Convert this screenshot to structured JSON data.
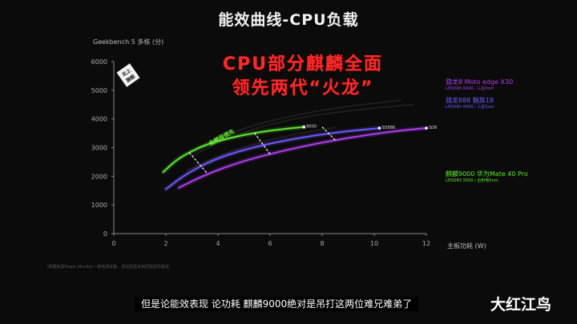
{
  "page": {
    "title": "能效曲线-CPU负载",
    "headline_lines": [
      "CPU部分麒麟全面",
      "领先两代“火龙”"
    ],
    "badge_lines": [
      "北上",
      "旗舰"
    ],
    "subtitle": "但是论能效表现 论功耗 麒麟9000绝对是吊打这两位难兄难弟了",
    "watermark": "大红江鸟",
    "footnote": "*数据来源Power Monitor一致电源采集，测试机型采用同款固件版本"
  },
  "chart_data": {
    "type": "line",
    "ylabel": "Geekbench 5 多核 (分)",
    "xlabel": "主板功耗 (W)",
    "xlim": [
      0,
      12
    ],
    "ylim": [
      0,
      6000
    ],
    "x_ticks": [
      "0",
      "2",
      "4",
      "6",
      "8",
      "10",
      "12"
    ],
    "y_ticks": [
      "0",
      "1000",
      "2000",
      "3000",
      "4000",
      "5000",
      "6000"
    ],
    "grid": false,
    "legend_position": "right",
    "annotation": "全频段领先",
    "series": [
      {
        "name": "麒麟9000",
        "end_label": "9000",
        "color": "#5bea2c",
        "points": [
          [
            1.9,
            2150
          ],
          [
            2.5,
            2650
          ],
          [
            3.5,
            3100
          ],
          [
            4.5,
            3350
          ],
          [
            5.5,
            3530
          ],
          [
            6.5,
            3650
          ],
          [
            7.3,
            3720
          ]
        ]
      },
      {
        "name": "骁龙888",
        "end_label": "SD888",
        "color": "#6e58ff",
        "points": [
          [
            2.0,
            1550
          ],
          [
            2.8,
            2100
          ],
          [
            4.0,
            2650
          ],
          [
            5.5,
            3050
          ],
          [
            7.0,
            3320
          ],
          [
            8.5,
            3530
          ],
          [
            10.2,
            3680
          ]
        ]
      },
      {
        "name": "骁龙8",
        "end_label": "SD8",
        "color": "#b13df2",
        "points": [
          [
            2.5,
            1600
          ],
          [
            3.5,
            2050
          ],
          [
            5.0,
            2550
          ],
          [
            7.0,
            3000
          ],
          [
            9.0,
            3350
          ],
          [
            11.0,
            3600
          ],
          [
            12.0,
            3680
          ]
        ]
      },
      {
        "name": "",
        "color": "#ffffff",
        "faded": true,
        "points": [
          [
            3.0,
            2700
          ],
          [
            4.5,
            3400
          ],
          [
            6.5,
            3950
          ],
          [
            9.0,
            4300
          ],
          [
            11.5,
            4500
          ]
        ]
      },
      {
        "name": "",
        "color": "#ffffff",
        "faded": true,
        "points": [
          [
            3.2,
            3000
          ],
          [
            5.0,
            3700
          ],
          [
            7.0,
            4150
          ],
          [
            9.0,
            4450
          ],
          [
            11.0,
            4650
          ]
        ]
      },
      {
        "name": "",
        "color": "#ffffff",
        "faded": true,
        "points": [
          [
            2.8,
            2200
          ],
          [
            4.5,
            2900
          ],
          [
            6.5,
            3400
          ],
          [
            8.5,
            3700
          ]
        ]
      }
    ]
  },
  "legend": {
    "items": [
      {
        "title": "",
        "sub": "",
        "color": "#888888",
        "dim": true
      },
      {
        "title": "",
        "sub": "",
        "color": "#888888",
        "dim": true
      },
      {
        "title": "骁龙8 Moto edge X30",
        "sub": "LPDDR5 6400 / 三星4nm",
        "color": "#b13df2",
        "dim": false
      },
      {
        "title": "骁龙888 魅族18",
        "sub": "LPDDR5 6400 / 三星5nm",
        "color": "#6e58ff",
        "dim": false
      },
      {
        "title": "",
        "sub": "",
        "color": "#888888",
        "dim": true
      },
      {
        "title": "",
        "sub": "",
        "color": "#888888",
        "dim": true
      },
      {
        "title": "",
        "sub": "",
        "color": "#888888",
        "dim": true
      },
      {
        "title": "麒麟9000 华为Mate 40 Pro",
        "sub": "LPDDR5 5500 / 台积电5nm",
        "color": "#5bea2c",
        "dim": false
      },
      {
        "title": "",
        "sub": "",
        "color": "#888888",
        "dim": true
      },
      {
        "title": "",
        "sub": "",
        "color": "#888888",
        "dim": true
      },
      {
        "title": "",
        "sub": "",
        "color": "#888888",
        "dim": true
      }
    ]
  }
}
